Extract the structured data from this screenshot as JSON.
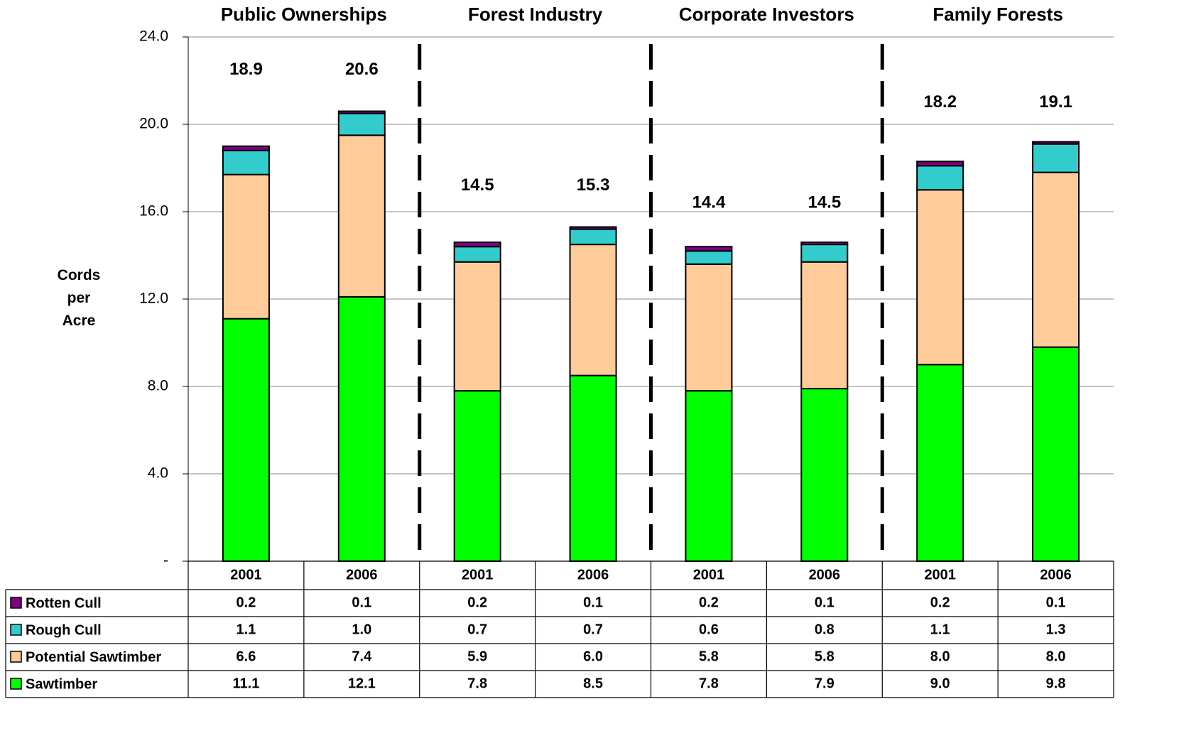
{
  "chart_data": {
    "type": "stacked_bar",
    "y_label": "Cords per Acre",
    "groups": [
      "Public Ownerships",
      "Forest Industry",
      "Corporate Investors",
      "Family Forests"
    ],
    "categories": [
      "2001",
      "2006",
      "2001",
      "2006",
      "2001",
      "2006",
      "2001",
      "2006"
    ],
    "totals": [
      18.9,
      20.6,
      14.5,
      15.3,
      14.4,
      14.5,
      18.2,
      19.1
    ],
    "series": [
      {
        "name": "Sawtimber",
        "color": "#00ff00",
        "values": [
          11.1,
          12.1,
          7.8,
          8.5,
          7.8,
          7.9,
          9.0,
          9.8
        ],
        "value_labels": [
          "11.1",
          "12.1",
          "7.8",
          "8.5",
          "7.8",
          "7.9",
          "9.0",
          "9.8"
        ]
      },
      {
        "name": "Potential Sawtimber",
        "color": "#ffcc99",
        "values": [
          6.6,
          7.4,
          5.9,
          6.0,
          5.8,
          5.8,
          8.0,
          8.0
        ],
        "value_labels": [
          "6.6",
          "7.4",
          "5.9",
          "6.0",
          "5.8",
          "5.8",
          "8.0",
          "8.0"
        ]
      },
      {
        "name": "Rough Cull",
        "color": "#33cccc",
        "values": [
          1.1,
          1.0,
          0.7,
          0.7,
          0.6,
          0.8,
          1.1,
          1.3
        ],
        "value_labels": [
          "1.1",
          "1.0",
          "0.7",
          "0.7",
          "0.6",
          "0.8",
          "1.1",
          "1.3"
        ]
      },
      {
        "name": "Rotten Cull",
        "color": "#800080",
        "values": [
          0.2,
          0.1,
          0.2,
          0.1,
          0.2,
          0.1,
          0.2,
          0.1
        ],
        "value_labels": [
          "0.2",
          "0.1",
          "0.2",
          "0.1",
          "0.2",
          "0.1",
          "0.2",
          "0.1"
        ]
      }
    ],
    "ylim": [
      0,
      24
    ],
    "yticks": [
      {
        "value": 0,
        "label": "-"
      },
      {
        "value": 4,
        "label": "4.0"
      },
      {
        "value": 8,
        "label": "8.0"
      },
      {
        "value": 12,
        "label": "12.0"
      },
      {
        "value": 16,
        "label": "16.0"
      },
      {
        "value": 20,
        "label": "20.0"
      },
      {
        "value": 24,
        "label": "24.0"
      }
    ],
    "grid": true
  }
}
